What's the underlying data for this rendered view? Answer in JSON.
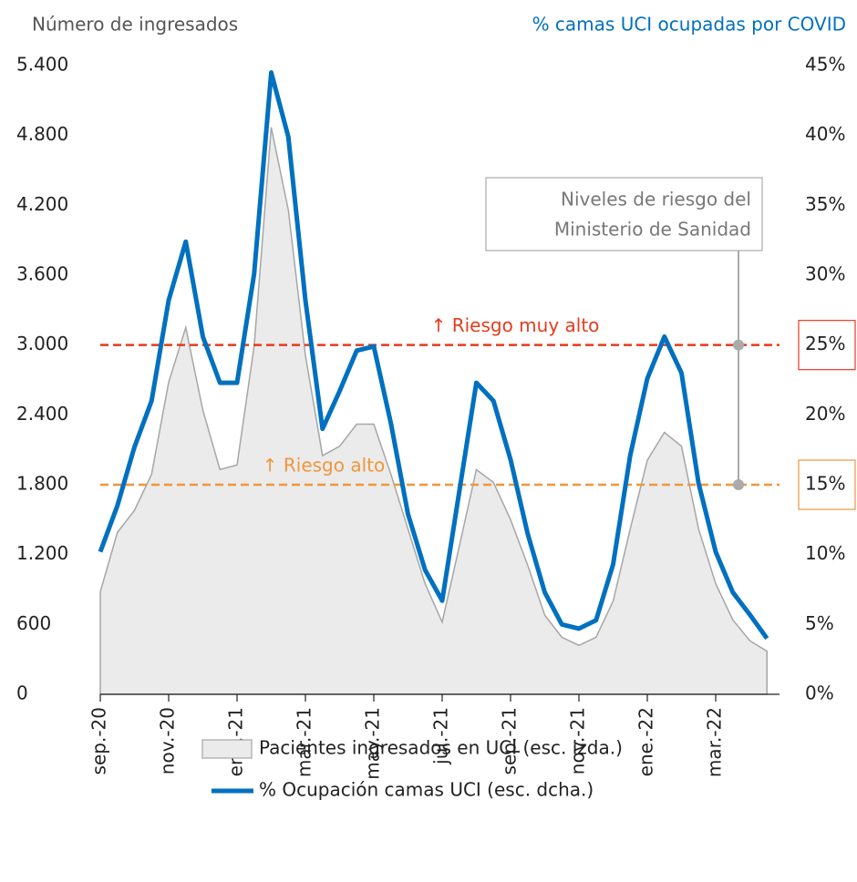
{
  "chart_data": {
    "type": "line",
    "y_axis_title": "Número de ingresados",
    "y2_axis_title": "% camas UCI ocupadas por COVID",
    "categories": [
      "sep.-20",
      null,
      null,
      null,
      "nov.-20",
      null,
      null,
      null,
      "ene.-21",
      null,
      null,
      null,
      "mar.-21",
      null,
      null,
      null,
      "may.-21",
      null,
      null,
      null,
      "jul.-21",
      null,
      null,
      null,
      "sep.-21",
      null,
      null,
      null,
      "nov.-21",
      null,
      null,
      null,
      "ene.-22",
      null,
      null,
      null,
      "mar.-22",
      null,
      null,
      null
    ],
    "series": [
      {
        "name": "Pacientes ingresados en UCI (esc. izda.)",
        "type": "area",
        "color": "#ebebeb",
        "axis": "y",
        "values": [
          880,
          1390,
          1580,
          1890,
          2680,
          3150,
          2440,
          1930,
          1970,
          2990,
          4870,
          4160,
          2910,
          2050,
          2130,
          2320,
          2320,
          1890,
          1420,
          950,
          620,
          1270,
          1930,
          1820,
          1500,
          1110,
          680,
          490,
          420,
          490,
          800,
          1420,
          2010,
          2250,
          2130,
          1420,
          950,
          640,
          460,
          370
        ]
      },
      {
        "name": "% Ocupación camas UCI (esc. dcha.)",
        "type": "line",
        "color": "#0070c0",
        "axis": "y2",
        "values": [
          10.2,
          13.5,
          17.7,
          21.0,
          28.2,
          32.4,
          25.6,
          22.3,
          22.3,
          30.1,
          44.5,
          39.9,
          28.2,
          19.0,
          21.7,
          24.6,
          24.9,
          19.4,
          12.9,
          8.9,
          6.7,
          14.5,
          22.3,
          21.0,
          16.8,
          11.5,
          7.3,
          5.0,
          4.7,
          5.3,
          9.3,
          17.1,
          22.6,
          25.6,
          23.0,
          15.1,
          10.2,
          7.3,
          5.7,
          4.0
        ]
      }
    ],
    "ylim": [
      0,
      5400
    ],
    "yticks": [
      0,
      600,
      {
        "value": 1200,
        "label": "1.200"
      },
      {
        "value": 1800,
        "label": "1.800"
      },
      {
        "value": 2400,
        "label": "2.400"
      },
      {
        "value": 3000,
        "label": "3.000"
      },
      {
        "value": 3600,
        "label": "3.600"
      },
      {
        "value": 4200,
        "label": "4.200"
      },
      {
        "value": 4800,
        "label": "4.800"
      },
      {
        "value": 5400,
        "label": "5.400"
      }
    ],
    "y2lim": [
      0,
      45
    ],
    "y2ticks": [
      {
        "value": 0,
        "label": "0%"
      },
      {
        "value": 5,
        "label": "5%"
      },
      {
        "value": 10,
        "label": "10%"
      },
      {
        "value": 15,
        "label": "15%"
      },
      {
        "value": 20,
        "label": "20%"
      },
      {
        "value": 25,
        "label": "25%"
      },
      {
        "value": 30,
        "label": "30%"
      },
      {
        "value": 35,
        "label": "35%"
      },
      {
        "value": 40,
        "label": "40%"
      },
      {
        "value": 45,
        "label": "45%"
      }
    ],
    "thresholds": [
      {
        "value": 25,
        "label": "↑ Riesgo muy alto",
        "color": "#e63b1e"
      },
      {
        "value": 15,
        "label": "↑ Riesgo alto",
        "color": "#f0963c"
      }
    ],
    "annotation": [
      "Niveles de riesgo del",
      "Ministerio de Sanidad"
    ],
    "grid": false
  }
}
